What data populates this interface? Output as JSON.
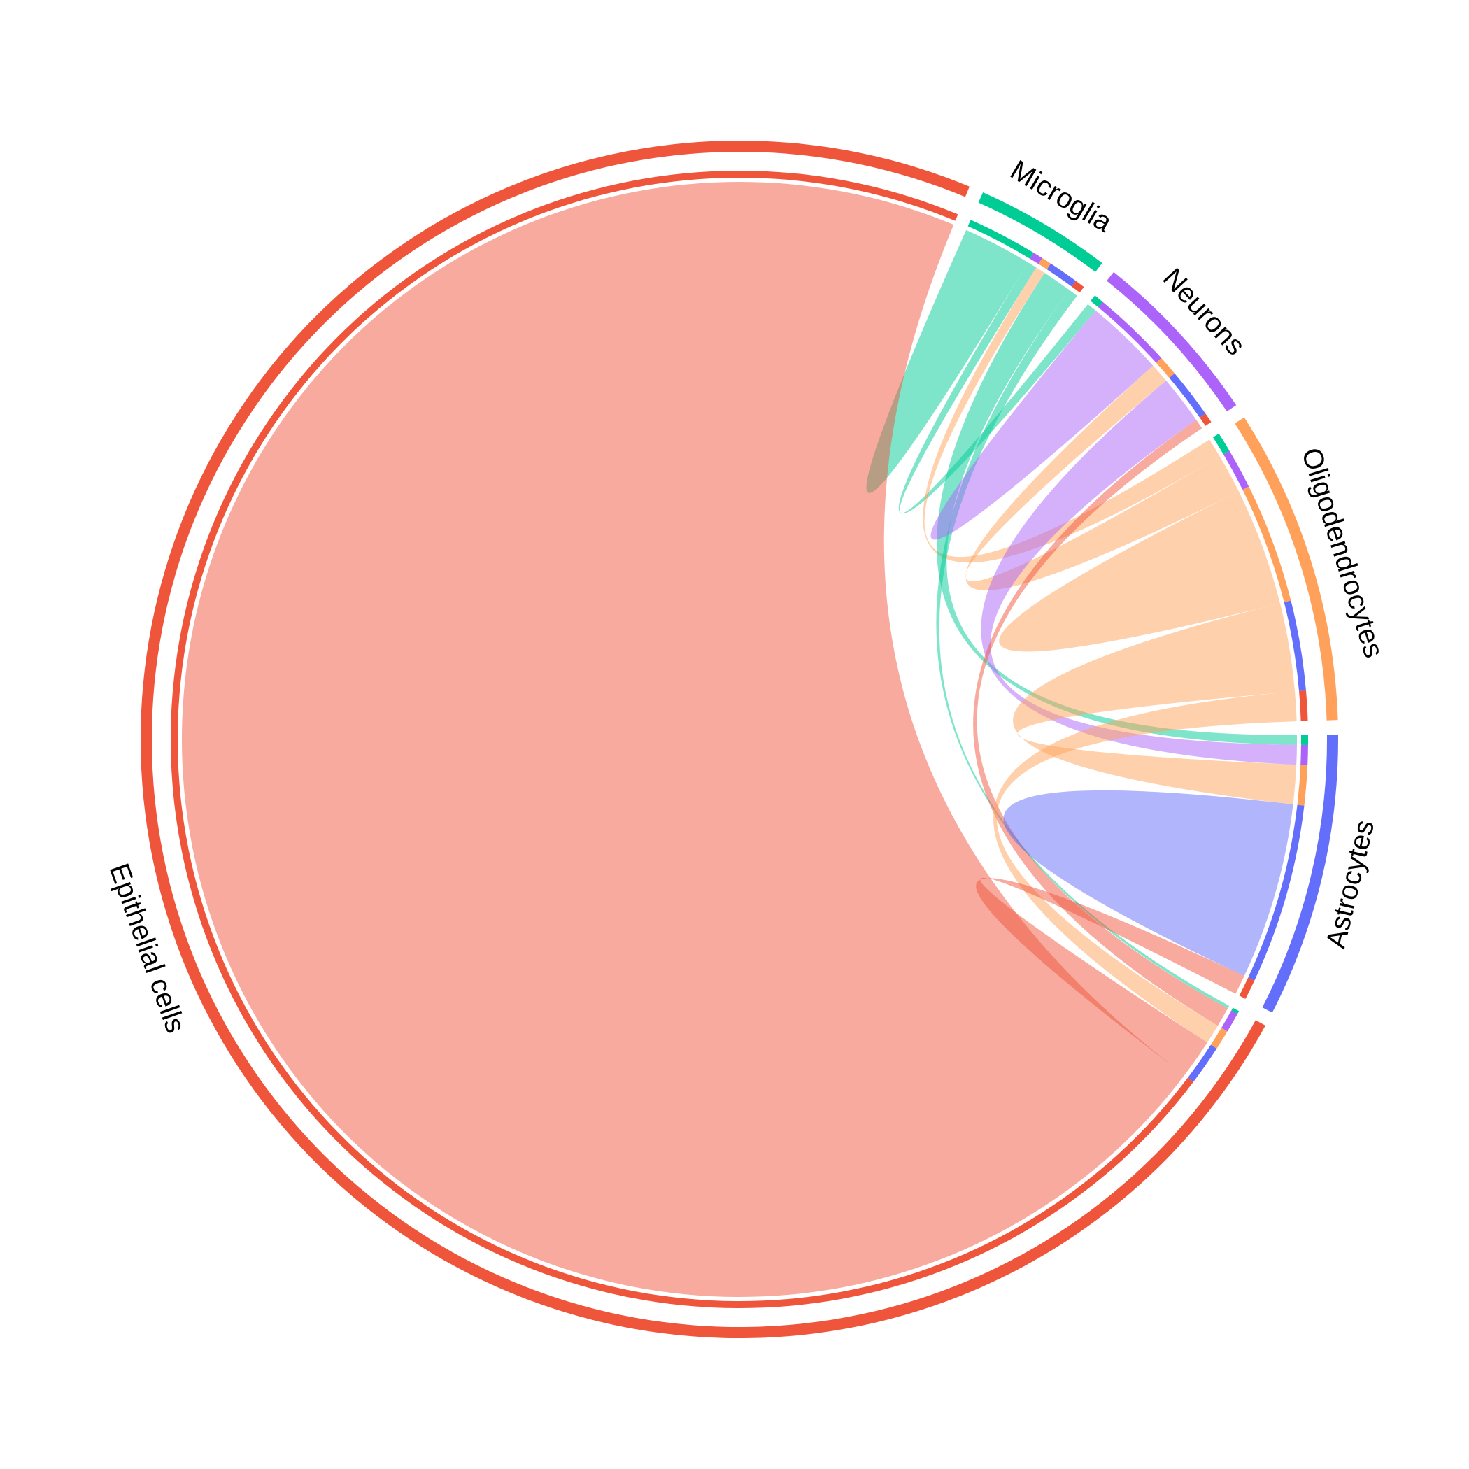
{
  "chart_data": {
    "type": "chord",
    "groups": [
      "Microglia",
      "Neurons",
      "Oligodendrocytes",
      "Astrocytes",
      "Epithelial cells"
    ],
    "colors": [
      "#00CC96",
      "#AB63FA",
      "#FFA15A",
      "#636EFA",
      "#EF553B"
    ],
    "matrix": [
      [
        7,
        1,
        1,
        3,
        1
      ],
      [
        1,
        8,
        2,
        5,
        1
      ],
      [
        2,
        4,
        12,
        9,
        3
      ],
      [
        1,
        2,
        4,
        18,
        2
      ],
      [
        0.3,
        2,
        2,
        4,
        250
      ]
    ],
    "start_angle_deg": 24,
    "ribbon_opacity": 0.5
  }
}
